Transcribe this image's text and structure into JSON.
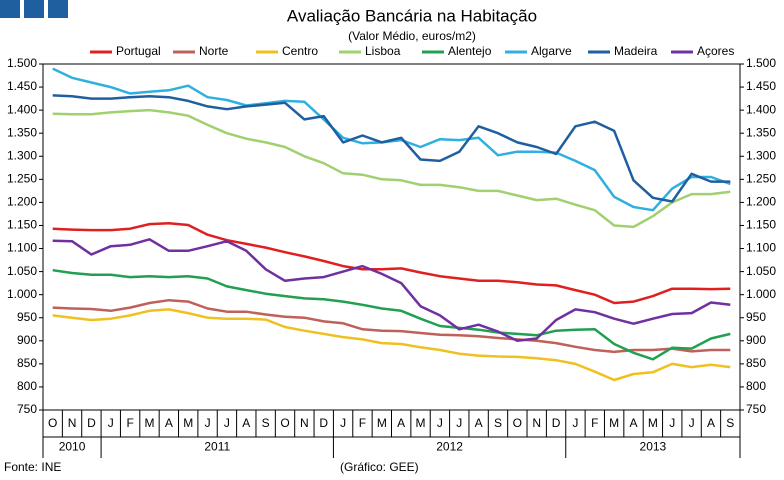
{
  "chart_data": {
    "type": "line",
    "title": "Avaliação Bancária na Habitação",
    "subtitle": "(Valor Médio, euros/m2)",
    "source": "Fonte: INE",
    "credit": "(Gráfico: GEE)",
    "categories": [
      "O",
      "N",
      "D",
      "J",
      "F",
      "M",
      "A",
      "M",
      "J",
      "J",
      "A",
      "S",
      "O",
      "N",
      "D",
      "J",
      "F",
      "M",
      "A",
      "M",
      "J",
      "J",
      "A",
      "S",
      "O",
      "N",
      "D",
      "J",
      "F",
      "M",
      "A",
      "M",
      "J",
      "J",
      "A",
      "S"
    ],
    "year_groups": [
      {
        "label": "2010",
        "months": 3
      },
      {
        "label": "2011",
        "months": 12
      },
      {
        "label": "2012",
        "months": 12
      },
      {
        "label": "2013",
        "months": 9
      }
    ],
    "ylim": [
      750,
      1500
    ],
    "yticks": [
      {
        "value": 750,
        "label": "750"
      },
      {
        "value": 800,
        "label": "800"
      },
      {
        "value": 850,
        "label": "850"
      },
      {
        "value": 900,
        "label": "900"
      },
      {
        "value": 950,
        "label": "950"
      },
      {
        "value": 1000,
        "label": "1.000"
      },
      {
        "value": 1050,
        "label": "1.050"
      },
      {
        "value": 1100,
        "label": "1.100"
      },
      {
        "value": 1150,
        "label": "1.150"
      },
      {
        "value": 1200,
        "label": "1.200"
      },
      {
        "value": 1250,
        "label": "1.250"
      },
      {
        "value": 1300,
        "label": "1.300"
      },
      {
        "value": 1350,
        "label": "1.350"
      },
      {
        "value": 1400,
        "label": "1.400"
      },
      {
        "value": 1450,
        "label": "1.450"
      },
      {
        "value": 1500,
        "label": "1.500"
      }
    ],
    "right_axis_mirror": true,
    "legend": "top",
    "series": [
      {
        "name": "Portugal",
        "color": "#e02020",
        "values": [
          1143,
          1141,
          1140,
          1140,
          1143,
          1153,
          1155,
          1151,
          1130,
          1118,
          1110,
          1102,
          1092,
          1083,
          1073,
          1062,
          1055,
          1055,
          1057,
          1048,
          1040,
          1035,
          1030,
          1030,
          1027,
          1022,
          1020,
          1010,
          1000,
          982,
          985,
          997,
          1013,
          1013,
          1012,
          1013
        ]
      },
      {
        "name": "Norte",
        "color": "#c0605a",
        "values": [
          972,
          970,
          969,
          965,
          972,
          982,
          988,
          985,
          970,
          963,
          963,
          957,
          952,
          950,
          942,
          938,
          925,
          922,
          921,
          917,
          913,
          912,
          910,
          906,
          903,
          900,
          895,
          887,
          880,
          876,
          880,
          880,
          883,
          877,
          880,
          880
        ]
      },
      {
        "name": "Centro",
        "color": "#f0c020",
        "values": [
          955,
          950,
          945,
          948,
          955,
          965,
          968,
          960,
          950,
          948,
          948,
          946,
          930,
          922,
          915,
          908,
          903,
          895,
          893,
          886,
          880,
          872,
          868,
          866,
          865,
          862,
          858,
          850,
          833,
          815,
          828,
          832,
          850,
          843,
          848,
          843
        ]
      },
      {
        "name": "Lisboa",
        "color": "#a0d070",
        "values": [
          1392,
          1391,
          1391,
          1395,
          1398,
          1400,
          1395,
          1388,
          1368,
          1350,
          1338,
          1330,
          1320,
          1300,
          1285,
          1263,
          1260,
          1250,
          1248,
          1238,
          1238,
          1233,
          1225,
          1225,
          1215,
          1205,
          1208,
          1195,
          1183,
          1150,
          1147,
          1170,
          1200,
          1218,
          1218,
          1223
        ]
      },
      {
        "name": "Alentejo",
        "color": "#20a050",
        "values": [
          1053,
          1047,
          1043,
          1043,
          1038,
          1040,
          1038,
          1040,
          1035,
          1018,
          1010,
          1002,
          997,
          992,
          990,
          985,
          978,
          970,
          965,
          948,
          932,
          928,
          924,
          918,
          915,
          912,
          922,
          924,
          925,
          893,
          874,
          860,
          885,
          883,
          905,
          915
        ]
      },
      {
        "name": "Algarve",
        "color": "#30b0e0",
        "values": [
          1490,
          1470,
          1460,
          1450,
          1436,
          1440,
          1443,
          1453,
          1428,
          1422,
          1410,
          1415,
          1420,
          1418,
          1380,
          1340,
          1328,
          1330,
          1335,
          1320,
          1337,
          1335,
          1340,
          1302,
          1310,
          1310,
          1308,
          1290,
          1270,
          1212,
          1190,
          1183,
          1230,
          1255,
          1255,
          1240
        ]
      },
      {
        "name": "Madeira",
        "color": "#1f5f9f",
        "values": [
          1432,
          1430,
          1425,
          1425,
          1428,
          1430,
          1428,
          1420,
          1408,
          1402,
          1408,
          1412,
          1416,
          1380,
          1387,
          1330,
          1345,
          1330,
          1340,
          1293,
          1290,
          1310,
          1365,
          1350,
          1330,
          1320,
          1305,
          1365,
          1375,
          1355,
          1248,
          1210,
          1202,
          1262,
          1245,
          1245
        ]
      },
      {
        "name": "Açores",
        "color": "#7030a0",
        "values": [
          1117,
          1116,
          1087,
          1105,
          1108,
          1120,
          1095,
          1095,
          1105,
          1116,
          1095,
          1055,
          1030,
          1035,
          1038,
          1050,
          1062,
          1045,
          1025,
          975,
          955,
          925,
          935,
          920,
          900,
          905,
          945,
          968,
          962,
          948,
          937,
          948,
          958,
          960,
          983,
          978
        ]
      }
    ]
  }
}
